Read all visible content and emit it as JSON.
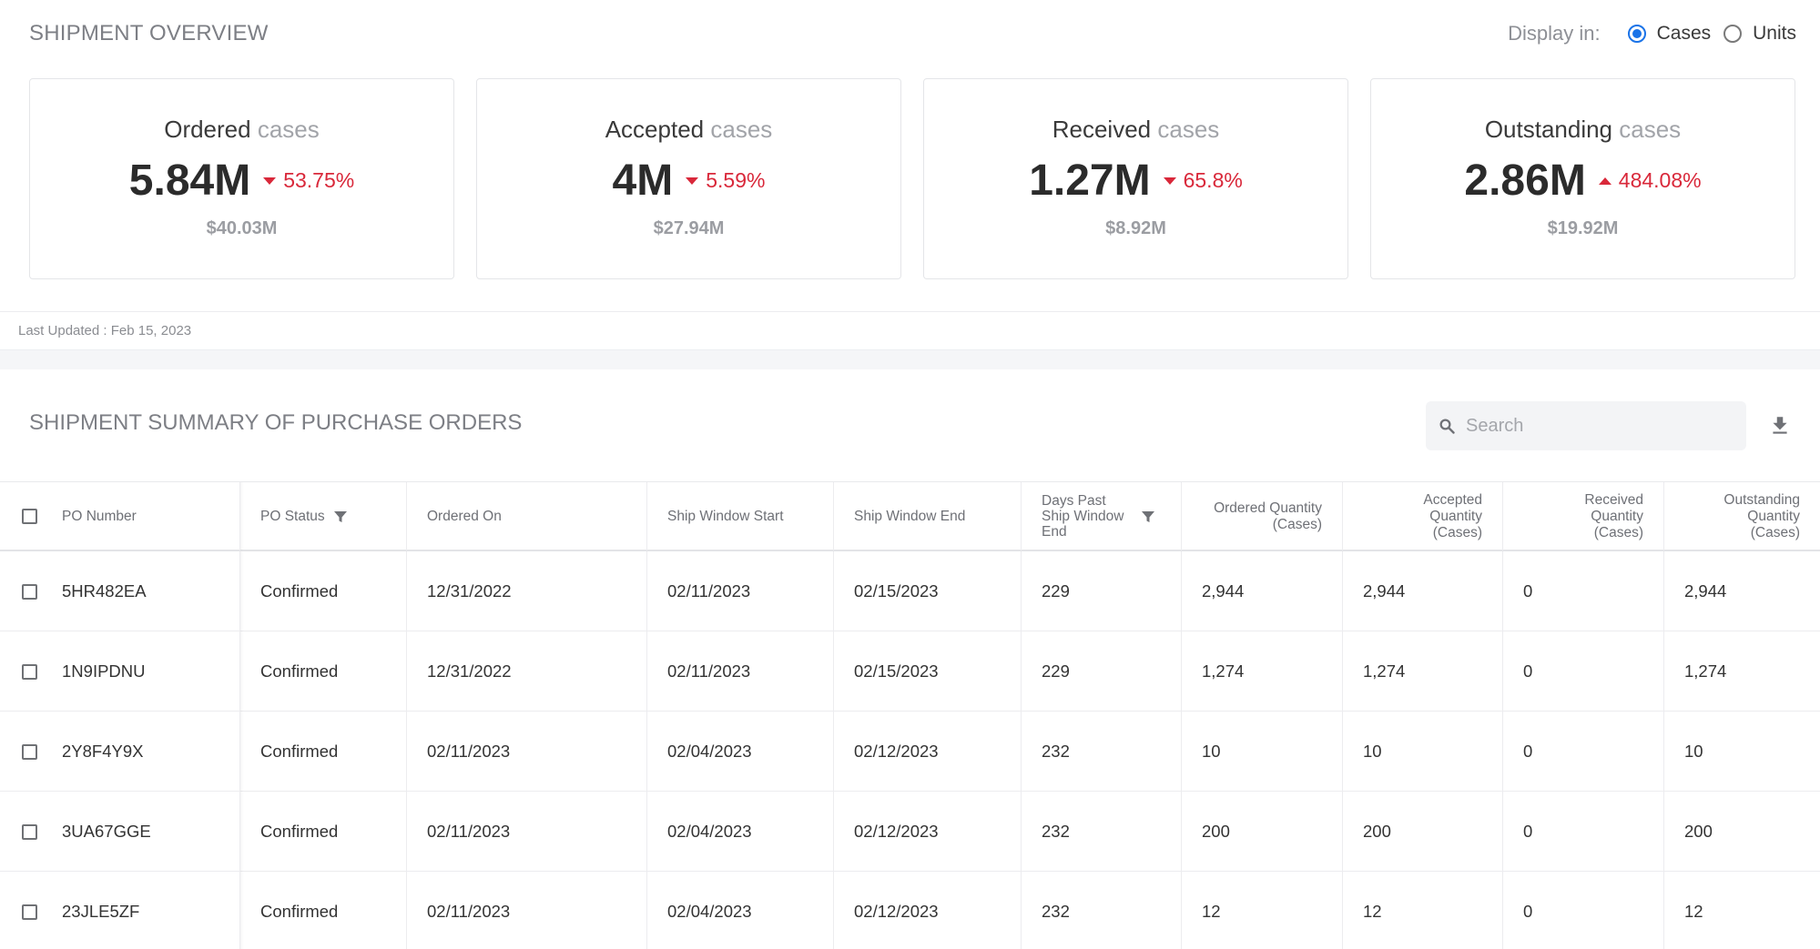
{
  "overview": {
    "title": "SHIPMENT OVERVIEW",
    "display_in_label": "Display in:",
    "options": [
      {
        "label": "Cases",
        "checked": true
      },
      {
        "label": "Units",
        "checked": false
      }
    ],
    "cards": [
      {
        "label": "Ordered",
        "unit": "cases",
        "value": "5.84M",
        "change": "53.75%",
        "direction": "down",
        "money": "$40.03M"
      },
      {
        "label": "Accepted",
        "unit": "cases",
        "value": "4M",
        "change": "5.59%",
        "direction": "down",
        "money": "$27.94M"
      },
      {
        "label": "Received",
        "unit": "cases",
        "value": "1.27M",
        "change": "65.8%",
        "direction": "down",
        "money": "$8.92M"
      },
      {
        "label": "Outstanding",
        "unit": "cases",
        "value": "2.86M",
        "change": "484.08%",
        "direction": "up",
        "money": "$19.92M"
      }
    ],
    "last_updated": "Last Updated : Feb 15, 2023",
    "accent_color": "#1a73e8",
    "negative_color": "#d9283a"
  },
  "summary": {
    "title": "SHIPMENT SUMMARY OF PURCHASE ORDERS",
    "search_placeholder": "Search",
    "search_icon": "search-icon",
    "download_icon": "download-icon",
    "columns": [
      {
        "label": "PO Number"
      },
      {
        "label": "PO Status",
        "filter": true
      },
      {
        "label": "Ordered On"
      },
      {
        "label": "Ship Window Start"
      },
      {
        "label": "Ship Window End"
      },
      {
        "label": "Days Past Ship Window End",
        "filter": true
      },
      {
        "label": "Ordered Quantity (Cases)"
      },
      {
        "label": "Accepted Quantity (Cases)"
      },
      {
        "label": "Received Quantity (Cases)"
      },
      {
        "label": "Outstanding Quantity (Cases)"
      }
    ],
    "rows": [
      [
        "5HR482EA",
        "Confirmed",
        "12/31/2022",
        "02/11/2023",
        "02/15/2023",
        "229",
        "2,944",
        "2,944",
        "0",
        "2,944"
      ],
      [
        "1N9IPDNU",
        "Confirmed",
        "12/31/2022",
        "02/11/2023",
        "02/15/2023",
        "229",
        "1,274",
        "1,274",
        "0",
        "1,274"
      ],
      [
        "2Y8F4Y9X",
        "Confirmed",
        "02/11/2023",
        "02/04/2023",
        "02/12/2023",
        "232",
        "10",
        "10",
        "0",
        "10"
      ],
      [
        "3UA67GGE",
        "Confirmed",
        "02/11/2023",
        "02/04/2023",
        "02/12/2023",
        "232",
        "200",
        "200",
        "0",
        "200"
      ],
      [
        "23JLE5ZF",
        "Confirmed",
        "02/11/2023",
        "02/04/2023",
        "02/12/2023",
        "232",
        "12",
        "12",
        "0",
        "12"
      ]
    ]
  }
}
